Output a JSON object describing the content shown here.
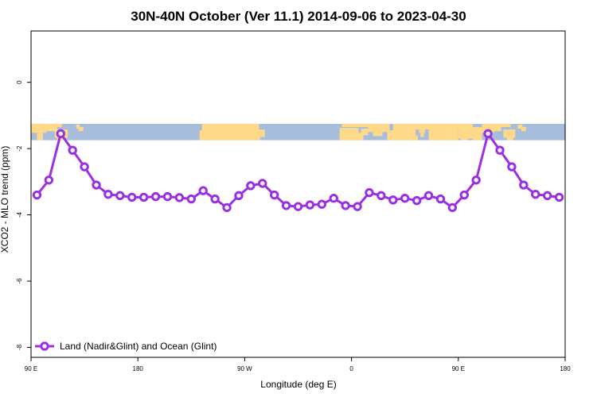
{
  "chart_data": {
    "type": "line",
    "title": "30N-40N October (Ver 11.1)   2014-09-06 to 2023-04-30",
    "xlabel": "Longitude (deg E)",
    "ylabel": "XCO2 - MLO trend (ppm)",
    "xlim": [
      90,
      540
    ],
    "ylim": [
      -8.3,
      1.55
    ],
    "x_ticks": [
      {
        "value": 90,
        "label": "90 E"
      },
      {
        "value": 180,
        "label": "180"
      },
      {
        "value": 270,
        "label": "90 W"
      },
      {
        "value": 360,
        "label": "0"
      },
      {
        "value": 450,
        "label": "90 E"
      },
      {
        "value": 540,
        "label": "180"
      }
    ],
    "y_ticks": [
      {
        "value": 0,
        "label": "0"
      },
      {
        "value": -2,
        "label": "-2"
      },
      {
        "value": -4,
        "label": "-4"
      },
      {
        "value": -6,
        "label": "-6"
      },
      {
        "value": -8,
        "label": "-8"
      }
    ],
    "grid": false,
    "legend_position": "bottom-left",
    "map_band": {
      "y_top": -1.25,
      "y_bottom": -1.75,
      "land_color": "#ffd98a",
      "ocean_color": "#a8bcdb"
    },
    "series": [
      {
        "name": "Land (Nadir&Glint) and Ocean (Glint)",
        "color": "#9b30e0",
        "x": [
          95,
          105,
          115,
          125,
          135,
          145,
          155,
          165,
          175,
          185,
          195,
          205,
          215,
          225,
          235,
          245,
          255,
          265,
          275,
          285,
          295,
          305,
          315,
          325,
          335,
          345,
          355,
          365,
          375,
          385,
          395,
          405,
          415,
          425,
          435,
          445,
          455,
          465,
          475,
          485,
          495,
          505,
          515,
          525,
          535
        ],
        "y": [
          -3.4,
          -2.95,
          -1.55,
          -2.05,
          -2.55,
          -3.1,
          -3.38,
          -3.42,
          -3.47,
          -3.47,
          -3.45,
          -3.45,
          -3.48,
          -3.52,
          -3.27,
          -3.52,
          -3.78,
          -3.42,
          -3.12,
          -3.05,
          -3.4,
          -3.72,
          -3.75,
          -3.7,
          -3.68,
          -3.5,
          -3.72,
          -3.75,
          -3.33,
          -3.42,
          -3.55,
          -3.5,
          -3.57,
          -3.42,
          -3.52,
          -3.78,
          -3.4,
          -2.95,
          -1.55,
          -2.05,
          -2.55,
          -3.1,
          -3.38,
          -3.42,
          -3.47
        ]
      }
    ]
  }
}
